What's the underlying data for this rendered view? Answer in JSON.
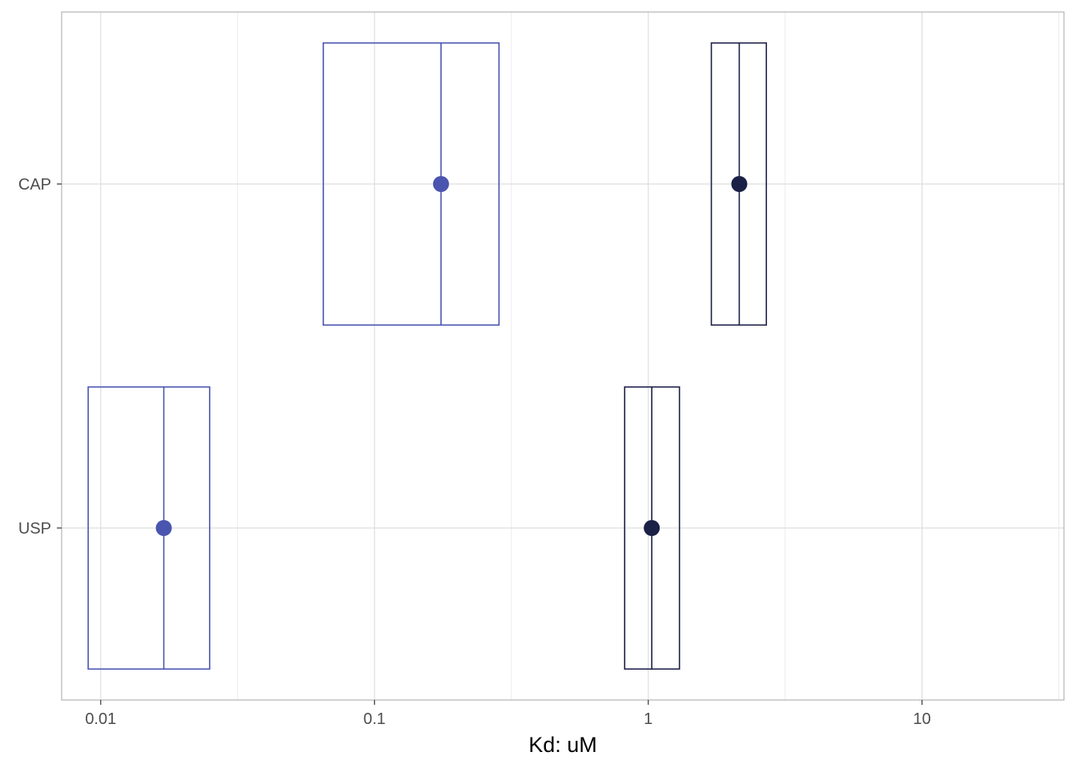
{
  "chart_data": {
    "type": "boxplot",
    "xlabel": "Kd: uM",
    "ylabel": "",
    "x_scale": "log10",
    "xlim": [
      0.0072,
      33
    ],
    "x_ticks": [
      {
        "value": 0.01,
        "label": "0.01"
      },
      {
        "value": 0.1,
        "label": "0.1"
      },
      {
        "value": 1,
        "label": "1"
      },
      {
        "value": 10,
        "label": "10"
      }
    ],
    "categories": [
      "CAP",
      "USP"
    ],
    "grid": true,
    "legend": "none",
    "series": [
      {
        "color": "#4a55b0",
        "boxes": [
          {
            "category": "CAP",
            "low": 0.065,
            "median": 0.175,
            "high": 0.285,
            "point": 0.175
          },
          {
            "category": "USP",
            "low": 0.009,
            "median": 0.017,
            "high": 0.025,
            "point": 0.017
          }
        ]
      },
      {
        "color": "#1b2046",
        "boxes": [
          {
            "category": "CAP",
            "low": 1.7,
            "median": 2.15,
            "high": 2.7,
            "point": 2.15
          },
          {
            "category": "USP",
            "low": 0.82,
            "median": 1.03,
            "high": 1.3,
            "point": 1.03
          }
        ]
      }
    ]
  }
}
